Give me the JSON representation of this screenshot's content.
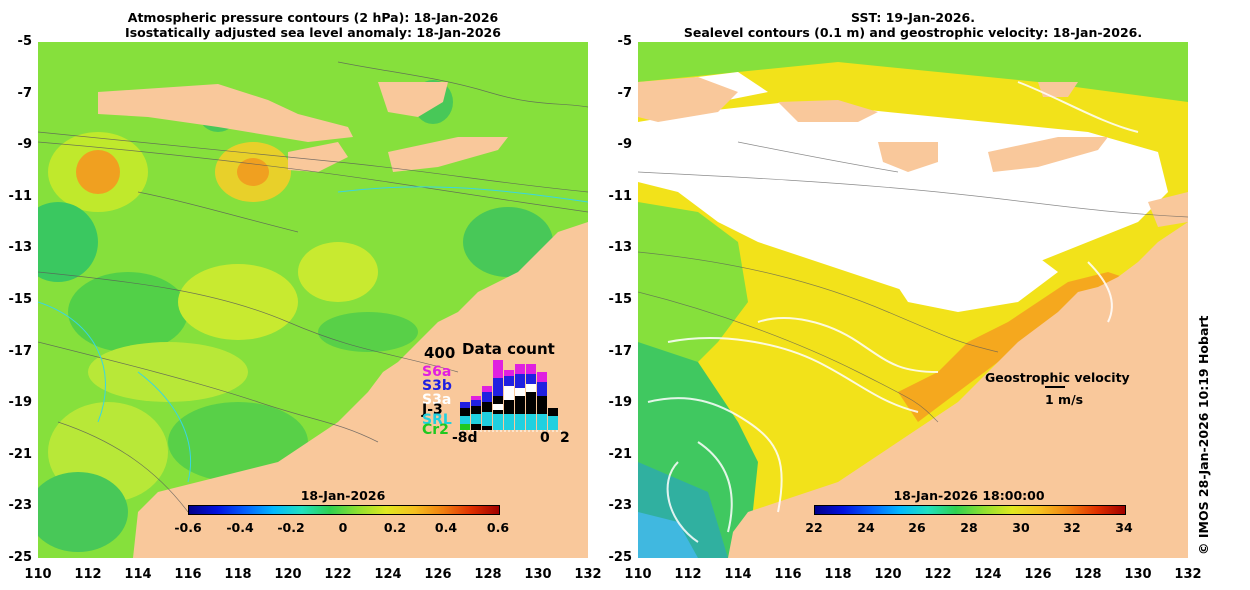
{
  "left_panel": {
    "title_line1": "Atmospheric pressure contours (2 hPa): 18-Jan-2026",
    "title_line2": "Isostatically adjusted sea level anomaly: 18-Jan-2026",
    "colorbar": {
      "date_label": "18-Jan-2026",
      "ticks": [
        "-0.6",
        "-0.4",
        "-0.2",
        "0",
        "0.2",
        "0.4",
        "0.6"
      ]
    },
    "data_count": {
      "title": "Data count",
      "ymax": "400",
      "missions": [
        "S6a",
        "S3b",
        "S3a",
        "J-3",
        "SRL",
        "Cr2"
      ],
      "xaxis_start": "-8d",
      "xaxis_end_labels": [
        "0",
        "2"
      ]
    }
  },
  "right_panel": {
    "title_line1": "SST: 19-Jan-2026.",
    "title_line2": "Sealevel contours (0.1 m) and geostrophic velocity: 18-Jan-2026.",
    "colorbar": {
      "date_label": "18-Jan-2026 18:00:00",
      "ticks": [
        "22",
        "24",
        "26",
        "28",
        "30",
        "32",
        "34"
      ]
    },
    "velocity_legend": {
      "title": "Geostrophic velocity",
      "scale": "1 m/s"
    }
  },
  "y_axis_labels": [
    "-5",
    "-7",
    "-9",
    "-11",
    "-13",
    "-15",
    "-17",
    "-19",
    "-21",
    "-23",
    "-25"
  ],
  "x_axis_labels": [
    "110",
    "112",
    "114",
    "116",
    "118",
    "120",
    "122",
    "124",
    "126",
    "128",
    "130",
    "132"
  ],
  "credit": "© IMOS 28-Jan-2026 10:19 Hobart",
  "colors": {
    "land": "#f9c89b",
    "ocean_green": "#7fe040",
    "ocean_yellow": "#e8ec2a",
    "sst_yellow": "#f2e21a",
    "sst_orange": "#f5a81e",
    "cloud": "#ffffff",
    "contour": "#5a5a5a",
    "coast_cyan": "#3ad6e0"
  }
}
